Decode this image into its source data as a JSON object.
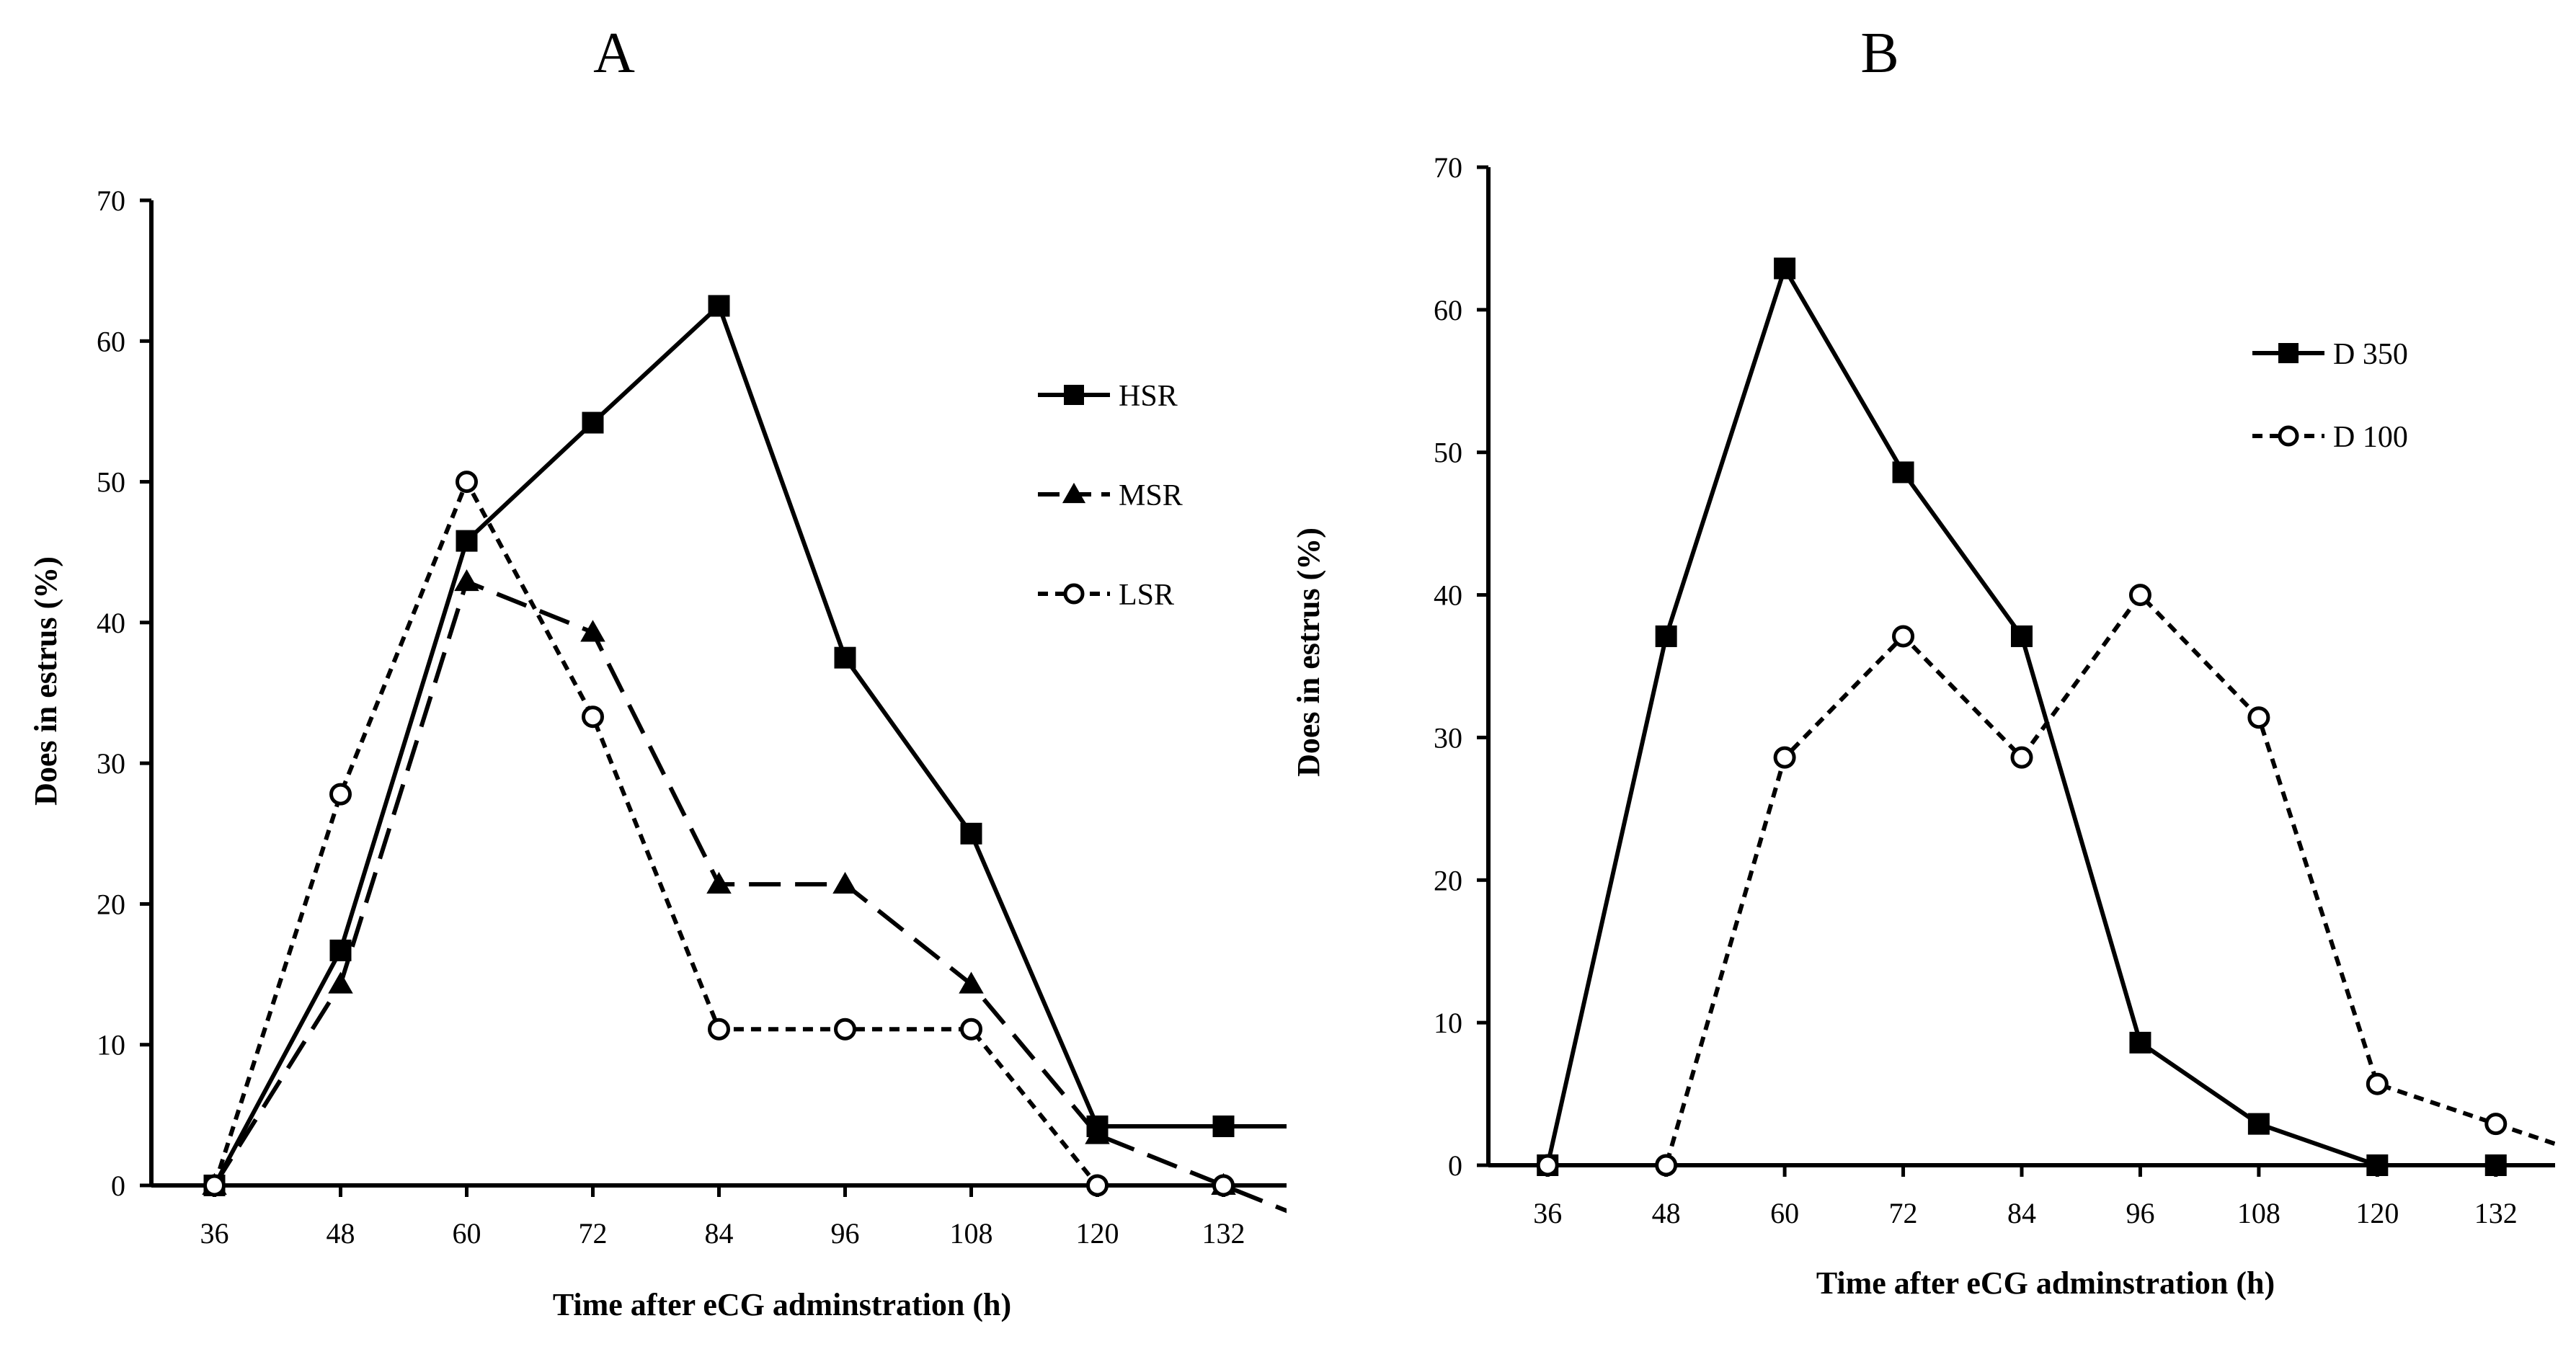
{
  "chart_data": [
    {
      "type": "line",
      "panel": "A",
      "title": "A",
      "xlabel": "Time after eCG adminstration (h)",
      "ylabel": "Does in estrus (%)",
      "x": [
        36,
        48,
        60,
        72,
        84,
        96,
        108,
        120,
        132
      ],
      "xlim": [
        30,
        138
      ],
      "ylim": [
        0,
        70
      ],
      "yticks": [
        0,
        10,
        20,
        30,
        40,
        50,
        60,
        70
      ],
      "grid": false,
      "legend_position": "right",
      "series": [
        {
          "name": "HSR",
          "marker": "square",
          "line": "solid",
          "values": [
            0,
            16.7,
            45.8,
            54.2,
            62.5,
            37.5,
            25.0,
            4.2,
            4.2
          ]
        },
        {
          "name": "MSR",
          "marker": "triangle",
          "line": "long-dash",
          "values": [
            0,
            14.3,
            42.9,
            39.3,
            21.4,
            21.4,
            14.3,
            3.6,
            0
          ]
        },
        {
          "name": "LSR",
          "marker": "circle",
          "line": "short-dash",
          "values": [
            0,
            27.8,
            50.0,
            33.3,
            11.1,
            11.1,
            11.1,
            0,
            0
          ]
        }
      ]
    },
    {
      "type": "line",
      "panel": "B",
      "title": "B",
      "xlabel": "Time after eCG adminstration (h)",
      "ylabel": "Does in estrus (%)",
      "x": [
        36,
        48,
        60,
        72,
        84,
        96,
        108,
        120,
        132
      ],
      "xlim": [
        30,
        138
      ],
      "ylim": [
        0,
        70
      ],
      "yticks": [
        0,
        10,
        20,
        30,
        40,
        50,
        60,
        70
      ],
      "grid": false,
      "legend_position": "top-right",
      "series": [
        {
          "name": "D 350",
          "marker": "square",
          "line": "solid",
          "values": [
            0,
            37.1,
            62.9,
            48.6,
            37.1,
            8.6,
            2.9,
            0,
            0
          ]
        },
        {
          "name": "D 100",
          "marker": "circle",
          "line": "short-dash",
          "values": [
            0,
            0,
            28.6,
            37.1,
            28.6,
            40.0,
            31.4,
            5.7,
            2.9
          ]
        }
      ]
    }
  ]
}
